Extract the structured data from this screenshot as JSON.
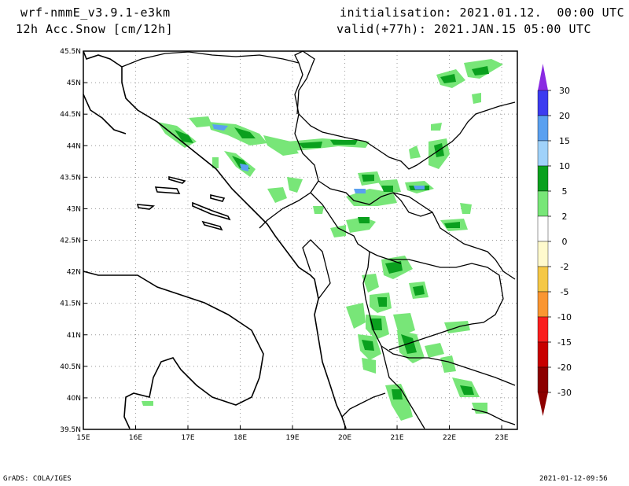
{
  "header": {
    "model": "wrf-nmmE_v3.9.1-e3km",
    "field": "12h Acc.Snow [cm/12h]",
    "init": "initialisation: 2021.01.12.  00:00 UTC",
    "valid": "valid(+77h): 2021.JAN.15 05:00 UTC"
  },
  "map": {
    "lon_range": [
      15,
      23.3
    ],
    "lat_range": [
      39.5,
      45.5
    ],
    "lon_ticks": [
      "15E",
      "16E",
      "17E",
      "18E",
      "19E",
      "20E",
      "21E",
      "22E",
      "23E"
    ],
    "lat_ticks": [
      "39.5N",
      "40N",
      "40.5N",
      "41N",
      "41.5N",
      "42N",
      "42.5N",
      "43N",
      "43.5N",
      "44N",
      "44.5N",
      "45N",
      "45.5N"
    ],
    "grid": "dotted"
  },
  "legend": {
    "labels": [
      "30",
      "20",
      "15",
      "10",
      "5",
      "2",
      "0",
      "-2",
      "-5",
      "-10",
      "-15",
      "-20",
      "-30"
    ],
    "colors": [
      "#8a2be2",
      "#3c3cf0",
      "#5aa0f0",
      "#a0d2fa",
      "#0aa01e",
      "#78e678",
      "#ffffff",
      "#fffacd",
      "#f5c846",
      "#fa9632",
      "#fa1e1e",
      "#c80000",
      "#8c0000"
    ]
  },
  "footer": {
    "left": "GrADS: COLA/IGES",
    "right": "2021-01-12-09:56"
  }
}
